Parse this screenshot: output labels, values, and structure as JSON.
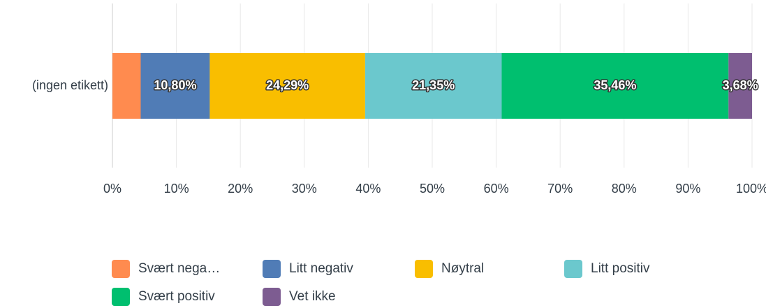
{
  "chart_data": {
    "type": "stacked_bar_horizontal",
    "categories": [
      "(ingen etikett)"
    ],
    "series": [
      {
        "name": "Svært nega…",
        "color": "#ff8b4f",
        "values": [
          4.42
        ]
      },
      {
        "name": "Litt negativ",
        "color": "#507cb6",
        "values": [
          10.8
        ],
        "value_labels": [
          "10,80%"
        ]
      },
      {
        "name": "Nøytral",
        "color": "#f9be00",
        "values": [
          24.29
        ],
        "value_labels": [
          "24,29%"
        ]
      },
      {
        "name": "Litt positiv",
        "color": "#6bc8cd",
        "values": [
          21.35
        ],
        "value_labels": [
          "21,35%"
        ]
      },
      {
        "name": "Svært positiv",
        "color": "#00bf6f",
        "values": [
          35.46
        ],
        "value_labels": [
          "35,46%"
        ]
      },
      {
        "name": "Vet ikke",
        "color": "#7d5c91",
        "values": [
          3.68
        ],
        "value_labels": [
          "3,68%"
        ]
      }
    ],
    "xlim": [
      0,
      100
    ],
    "xticks": [
      {
        "value": 0,
        "label": "0%"
      },
      {
        "value": 10,
        "label": "10%"
      },
      {
        "value": 20,
        "label": "20%"
      },
      {
        "value": 30,
        "label": "30%"
      },
      {
        "value": 40,
        "label": "40%"
      },
      {
        "value": 50,
        "label": "50%"
      },
      {
        "value": 60,
        "label": "60%"
      },
      {
        "value": 70,
        "label": "70%"
      },
      {
        "value": 80,
        "label": "80%"
      },
      {
        "value": 90,
        "label": "90%"
      },
      {
        "value": 100,
        "label": "100%"
      }
    ],
    "grid": true
  }
}
